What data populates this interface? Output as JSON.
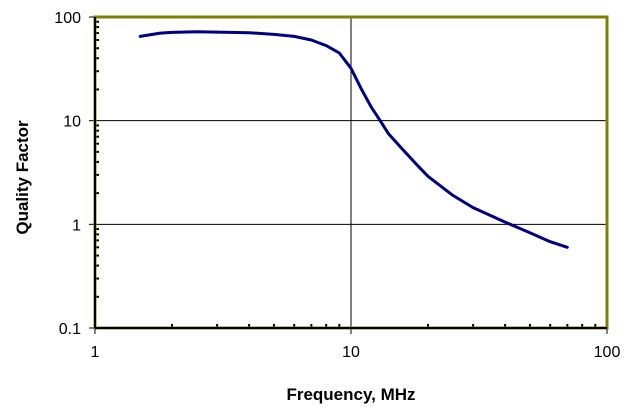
{
  "chart_data": {
    "type": "line",
    "title": "",
    "xlabel": "Frequency, MHz",
    "ylabel": "Quality Factor",
    "x_scale": "log",
    "y_scale": "log",
    "xlim": [
      1,
      100
    ],
    "ylim": [
      0.1,
      100
    ],
    "x_ticks": [
      {
        "value": 1,
        "label": "1"
      },
      {
        "value": 10,
        "label": "10"
      },
      {
        "value": 100,
        "label": "100"
      }
    ],
    "y_ticks": [
      {
        "value": 0.1,
        "label": "0.1"
      },
      {
        "value": 1,
        "label": "1"
      },
      {
        "value": 10,
        "label": "10"
      },
      {
        "value": 100,
        "label": "100"
      }
    ],
    "grid": true,
    "legend": "none",
    "colors": {
      "series": "#000080",
      "plot_border": "#808000",
      "grid": "#000000"
    },
    "series": [
      {
        "x": [
          1.5,
          1.8,
          2.0,
          2.5,
          3.0,
          4.0,
          5.0,
          6.0,
          7.0,
          8.0,
          9.0,
          10.0,
          11.0,
          12.0,
          13.0,
          14.0,
          16.0,
          18.0,
          20.0,
          25.0,
          30.0,
          40.0,
          50.0,
          60.0,
          70.0
        ],
        "y": [
          65,
          70,
          71,
          72,
          71.5,
          70.5,
          68,
          65,
          60,
          53,
          45,
          32,
          20,
          13.5,
          10,
          7.5,
          5.2,
          3.8,
          2.9,
          1.9,
          1.45,
          1.05,
          0.83,
          0.68,
          0.6
        ]
      }
    ]
  }
}
